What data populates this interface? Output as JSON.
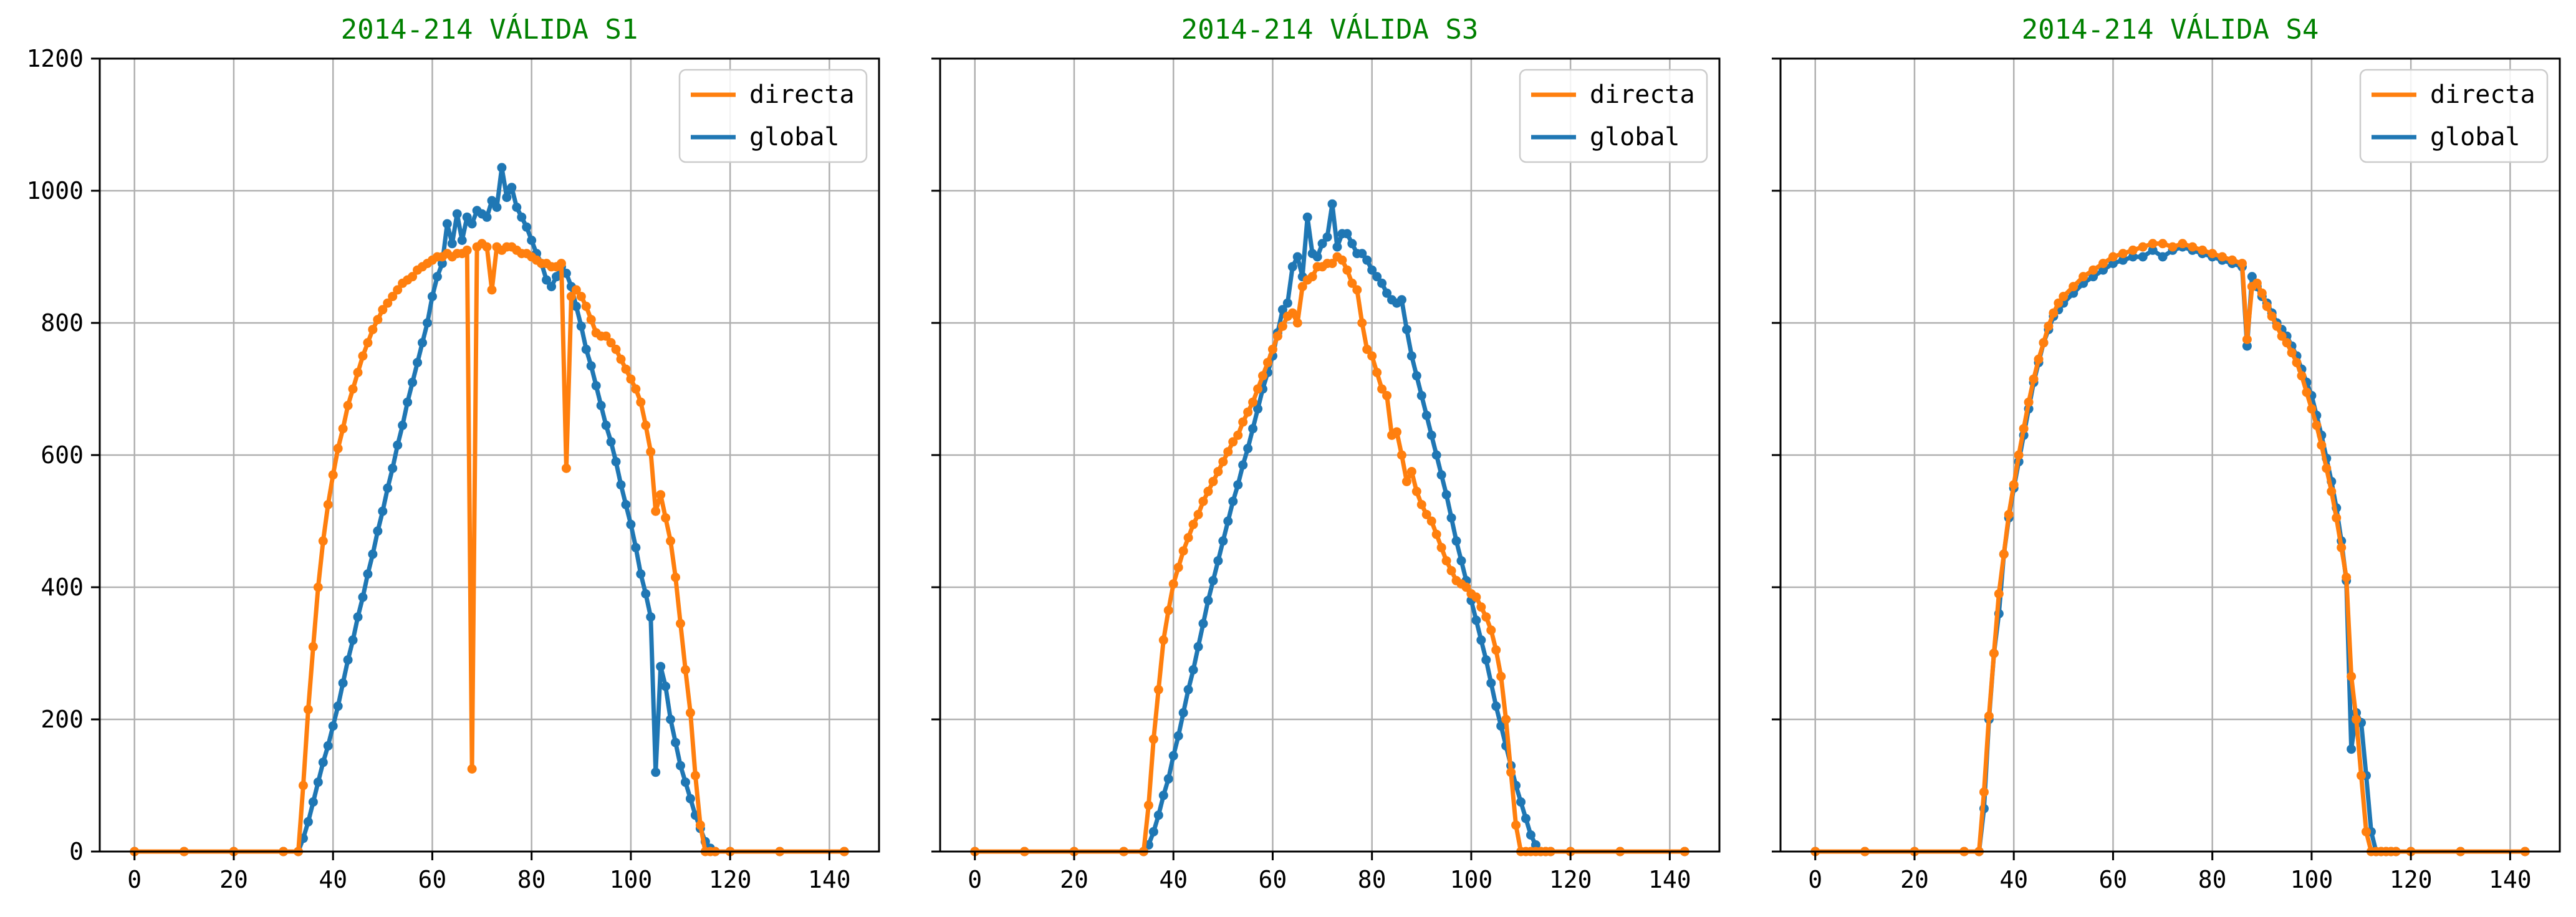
{
  "chart_data": [
    {
      "type": "line",
      "title": "2014-214 VÁLIDA S1",
      "xlabel": "",
      "ylabel": "",
      "xlim": [
        -7,
        150
      ],
      "ylim": [
        0,
        1200
      ],
      "xticks": [
        "0",
        "20",
        "40",
        "60",
        "80",
        "100",
        "120",
        "140"
      ],
      "yticks": [
        "0",
        "200",
        "400",
        "600",
        "800",
        "1000",
        "1200"
      ],
      "grid": true,
      "legend": "top-right",
      "series": [
        {
          "name": "global",
          "color": "#1f77b4",
          "x": [
            0,
            10,
            20,
            30,
            33,
            34,
            35,
            36,
            37,
            38,
            39,
            40,
            41,
            42,
            43,
            44,
            45,
            46,
            47,
            48,
            49,
            50,
            51,
            52,
            53,
            54,
            55,
            56,
            57,
            58,
            59,
            60,
            61,
            62,
            63,
            64,
            65,
            66,
            67,
            68,
            69,
            70,
            71,
            72,
            73,
            74,
            75,
            76,
            77,
            78,
            79,
            80,
            81,
            82,
            83,
            84,
            85,
            86,
            87,
            88,
            89,
            90,
            91,
            92,
            93,
            94,
            95,
            96,
            97,
            98,
            99,
            100,
            101,
            102,
            103,
            104,
            105,
            106,
            107,
            108,
            109,
            110,
            111,
            112,
            113,
            114,
            115,
            116,
            117,
            120,
            130,
            143
          ],
          "y": [
            0,
            0,
            0,
            0,
            0,
            20,
            45,
            75,
            105,
            135,
            160,
            190,
            220,
            255,
            290,
            320,
            355,
            385,
            420,
            450,
            485,
            515,
            550,
            580,
            615,
            645,
            680,
            710,
            740,
            770,
            800,
            840,
            870,
            890,
            950,
            920,
            965,
            925,
            960,
            950,
            970,
            965,
            960,
            985,
            975,
            1035,
            990,
            1005,
            975,
            960,
            945,
            925,
            905,
            890,
            865,
            855,
            870,
            885,
            875,
            855,
            825,
            795,
            760,
            735,
            705,
            675,
            645,
            620,
            590,
            555,
            525,
            495,
            460,
            420,
            390,
            355,
            120,
            280,
            250,
            200,
            165,
            130,
            105,
            80,
            55,
            35,
            15,
            5,
            0,
            0,
            0,
            0
          ]
        },
        {
          "name": "directa",
          "color": "#ff7f0e",
          "x": [
            0,
            10,
            20,
            30,
            33,
            34,
            35,
            36,
            37,
            38,
            39,
            40,
            41,
            42,
            43,
            44,
            45,
            46,
            47,
            48,
            49,
            50,
            51,
            52,
            53,
            54,
            55,
            56,
            57,
            58,
            59,
            60,
            61,
            62,
            63,
            64,
            65,
            66,
            67,
            68,
            69,
            70,
            71,
            72,
            73,
            74,
            75,
            76,
            77,
            78,
            79,
            80,
            81,
            82,
            83,
            84,
            85,
            86,
            87,
            88,
            89,
            90,
            91,
            92,
            93,
            94,
            95,
            96,
            97,
            98,
            99,
            100,
            101,
            102,
            103,
            104,
            105,
            106,
            107,
            108,
            109,
            110,
            111,
            112,
            113,
            114,
            115,
            116,
            117,
            120,
            130,
            143
          ],
          "y": [
            0,
            0,
            0,
            0,
            0,
            100,
            215,
            310,
            400,
            470,
            525,
            570,
            610,
            640,
            675,
            700,
            725,
            750,
            770,
            790,
            805,
            820,
            830,
            840,
            850,
            860,
            865,
            870,
            880,
            885,
            890,
            895,
            900,
            900,
            905,
            900,
            905,
            905,
            910,
            125,
            915,
            920,
            915,
            850,
            915,
            910,
            915,
            915,
            910,
            905,
            905,
            900,
            895,
            890,
            890,
            885,
            885,
            890,
            580,
            840,
            850,
            840,
            825,
            805,
            785,
            780,
            780,
            770,
            760,
            745,
            730,
            715,
            700,
            680,
            645,
            605,
            515,
            540,
            505,
            470,
            415,
            345,
            275,
            210,
            115,
            40,
            0,
            0,
            0,
            0,
            0,
            0
          ]
        }
      ]
    },
    {
      "type": "line",
      "title": "2014-214 VÁLIDA S3",
      "xlabel": "",
      "ylabel": "",
      "xlim": [
        -7,
        150
      ],
      "ylim": [
        0,
        1200
      ],
      "xticks": [
        "0",
        "20",
        "40",
        "60",
        "80",
        "100",
        "120",
        "140"
      ],
      "yticks": [
        "0",
        "200",
        "400",
        "600",
        "800",
        "1000",
        "1200"
      ],
      "grid": true,
      "legend": "top-right",
      "series": [
        {
          "name": "global",
          "color": "#1f77b4",
          "x": [
            0,
            10,
            20,
            30,
            34,
            35,
            36,
            37,
            38,
            39,
            40,
            41,
            42,
            43,
            44,
            45,
            46,
            47,
            48,
            49,
            50,
            51,
            52,
            53,
            54,
            55,
            56,
            57,
            58,
            59,
            60,
            61,
            62,
            63,
            64,
            65,
            66,
            67,
            68,
            69,
            70,
            71,
            72,
            73,
            74,
            75,
            76,
            77,
            78,
            79,
            80,
            81,
            82,
            83,
            84,
            85,
            86,
            87,
            88,
            89,
            90,
            91,
            92,
            93,
            94,
            95,
            96,
            97,
            98,
            99,
            100,
            101,
            102,
            103,
            104,
            105,
            106,
            107,
            108,
            109,
            110,
            111,
            112,
            113,
            114,
            115,
            116,
            120,
            130,
            143
          ],
          "y": [
            0,
            0,
            0,
            0,
            0,
            10,
            30,
            55,
            85,
            110,
            145,
            175,
            210,
            245,
            275,
            310,
            345,
            380,
            410,
            440,
            470,
            500,
            530,
            555,
            585,
            610,
            640,
            670,
            700,
            725,
            750,
            785,
            820,
            830,
            885,
            900,
            870,
            960,
            905,
            900,
            920,
            930,
            980,
            915,
            935,
            935,
            920,
            905,
            905,
            895,
            880,
            870,
            860,
            845,
            835,
            830,
            835,
            790,
            750,
            720,
            690,
            660,
            630,
            600,
            570,
            540,
            505,
            470,
            440,
            410,
            380,
            350,
            320,
            290,
            255,
            220,
            190,
            160,
            130,
            100,
            75,
            50,
            25,
            10,
            0,
            0,
            0,
            0,
            0,
            0
          ]
        },
        {
          "name": "directa",
          "color": "#ff7f0e",
          "x": [
            0,
            10,
            20,
            30,
            34,
            35,
            36,
            37,
            38,
            39,
            40,
            41,
            42,
            43,
            44,
            45,
            46,
            47,
            48,
            49,
            50,
            51,
            52,
            53,
            54,
            55,
            56,
            57,
            58,
            59,
            60,
            61,
            62,
            63,
            64,
            65,
            66,
            67,
            68,
            69,
            70,
            71,
            72,
            73,
            74,
            75,
            76,
            77,
            78,
            79,
            80,
            81,
            82,
            83,
            84,
            85,
            86,
            87,
            88,
            89,
            90,
            91,
            92,
            93,
            94,
            95,
            96,
            97,
            98,
            99,
            100,
            101,
            102,
            103,
            104,
            105,
            106,
            107,
            108,
            109,
            110,
            111,
            112,
            113,
            114,
            115,
            116,
            120,
            130,
            143
          ],
          "y": [
            0,
            0,
            0,
            0,
            0,
            70,
            170,
            245,
            320,
            365,
            405,
            430,
            455,
            475,
            495,
            510,
            530,
            545,
            560,
            575,
            590,
            605,
            620,
            630,
            650,
            665,
            680,
            700,
            720,
            740,
            760,
            780,
            795,
            810,
            815,
            800,
            855,
            865,
            870,
            885,
            885,
            890,
            890,
            900,
            895,
            880,
            860,
            850,
            800,
            760,
            750,
            725,
            700,
            690,
            630,
            635,
            600,
            560,
            575,
            545,
            525,
            510,
            500,
            480,
            460,
            440,
            425,
            410,
            405,
            400,
            390,
            385,
            370,
            355,
            335,
            305,
            265,
            200,
            120,
            40,
            0,
            0,
            0,
            0,
            0,
            0,
            0,
            0,
            0,
            0
          ]
        }
      ]
    },
    {
      "type": "line",
      "title": "2014-214 VÁLIDA S4",
      "xlabel": "",
      "ylabel": "",
      "xlim": [
        -7,
        150
      ],
      "ylim": [
        0,
        1200
      ],
      "xticks": [
        "0",
        "20",
        "40",
        "60",
        "80",
        "100",
        "120",
        "140"
      ],
      "yticks": [
        "0",
        "200",
        "400",
        "600",
        "800",
        "1000",
        "1200"
      ],
      "grid": true,
      "legend": "top-right",
      "series": [
        {
          "name": "global",
          "color": "#1f77b4",
          "x": [
            0,
            10,
            20,
            30,
            33,
            34,
            35,
            36,
            37,
            38,
            39,
            40,
            41,
            42,
            43,
            44,
            45,
            46,
            47,
            48,
            49,
            50,
            52,
            54,
            56,
            58,
            60,
            62,
            64,
            66,
            68,
            70,
            72,
            74,
            76,
            78,
            80,
            82,
            84,
            86,
            87,
            88,
            89,
            90,
            91,
            92,
            93,
            94,
            95,
            96,
            97,
            98,
            99,
            100,
            101,
            102,
            103,
            104,
            105,
            106,
            107,
            108,
            109,
            110,
            111,
            112,
            113,
            114,
            115,
            116,
            117,
            120,
            130,
            143
          ],
          "y": [
            0,
            0,
            0,
            0,
            0,
            65,
            200,
            300,
            360,
            450,
            505,
            550,
            590,
            630,
            670,
            710,
            740,
            770,
            790,
            810,
            820,
            830,
            845,
            860,
            870,
            880,
            890,
            895,
            900,
            900,
            910,
            900,
            910,
            915,
            910,
            905,
            900,
            895,
            890,
            885,
            765,
            870,
            855,
            840,
            830,
            815,
            800,
            790,
            780,
            765,
            750,
            730,
            710,
            690,
            660,
            630,
            595,
            560,
            520,
            470,
            410,
            155,
            210,
            195,
            115,
            30,
            0,
            0,
            0,
            0,
            0,
            0,
            0,
            0
          ]
        },
        {
          "name": "directa",
          "color": "#ff7f0e",
          "x": [
            0,
            10,
            20,
            30,
            33,
            34,
            35,
            36,
            37,
            38,
            39,
            40,
            41,
            42,
            43,
            44,
            45,
            46,
            47,
            48,
            49,
            50,
            52,
            54,
            56,
            58,
            60,
            62,
            64,
            66,
            68,
            70,
            72,
            74,
            76,
            78,
            80,
            82,
            84,
            86,
            87,
            88,
            89,
            90,
            91,
            92,
            93,
            94,
            95,
            96,
            97,
            98,
            99,
            100,
            101,
            102,
            103,
            104,
            105,
            106,
            107,
            108,
            109,
            110,
            111,
            112,
            113,
            114,
            115,
            116,
            117,
            120,
            130,
            143
          ],
          "y": [
            0,
            0,
            0,
            0,
            0,
            90,
            205,
            300,
            390,
            450,
            510,
            555,
            600,
            640,
            680,
            715,
            745,
            770,
            795,
            815,
            830,
            840,
            855,
            870,
            880,
            890,
            900,
            905,
            910,
            915,
            920,
            920,
            915,
            920,
            915,
            910,
            905,
            900,
            895,
            890,
            775,
            855,
            860,
            845,
            825,
            810,
            795,
            780,
            770,
            755,
            740,
            720,
            695,
            670,
            645,
            615,
            580,
            545,
            505,
            460,
            415,
            265,
            200,
            115,
            30,
            0,
            0,
            0,
            0,
            0,
            0,
            0,
            0,
            0
          ]
        }
      ]
    }
  ]
}
